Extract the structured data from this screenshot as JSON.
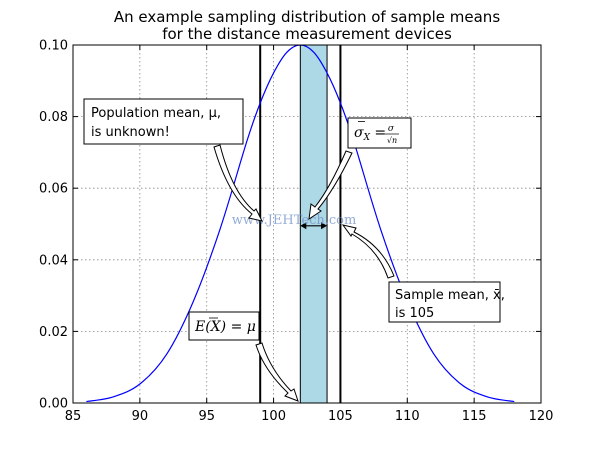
{
  "chart_data": {
    "type": "line",
    "title_line1": "An example sampling distribution of sample means",
    "title_line2": "for the distance measurement devices",
    "xlabel": "",
    "ylabel": "",
    "xlim": [
      85,
      120
    ],
    "ylim": [
      0,
      0.1
    ],
    "xticks": [
      "85",
      "90",
      "95",
      "100",
      "105",
      "110",
      "115",
      "120"
    ],
    "yticks": [
      "0.00",
      "0.02",
      "0.04",
      "0.06",
      "0.08",
      "0.10"
    ],
    "grid": true,
    "curve": {
      "color": "#0000ff",
      "x": [
        86,
        88,
        90,
        92,
        94,
        96,
        98,
        99,
        100,
        101,
        102,
        103,
        104,
        105,
        106,
        108,
        110,
        112,
        114,
        116,
        118
      ],
      "y": [
        0.0004,
        0.0017,
        0.0053,
        0.0136,
        0.0284,
        0.0486,
        0.0731,
        0.0838,
        0.0922,
        0.098,
        0.1,
        0.098,
        0.0922,
        0.0838,
        0.0731,
        0.0486,
        0.0284,
        0.0136,
        0.0053,
        0.0017,
        0.0004
      ]
    },
    "vertical_lines": [
      99,
      105
    ],
    "shaded_band": {
      "x_start": 102,
      "x_end": 104,
      "color": "#add8e6"
    },
    "error_bar": {
      "x_start": 102,
      "x_end": 104,
      "y": 0.0495
    },
    "annotations": {
      "population_mean_line1": "Population mean, μ,",
      "population_mean_line2": "is unknown!",
      "sigma": "σX̄ = σ/√n",
      "expected": "E(X̄) = μ",
      "sample_mean_line1": "Sample mean, x̄,",
      "sample_mean_line2": "is 105"
    }
  },
  "watermark": "www.JEHTech.com"
}
